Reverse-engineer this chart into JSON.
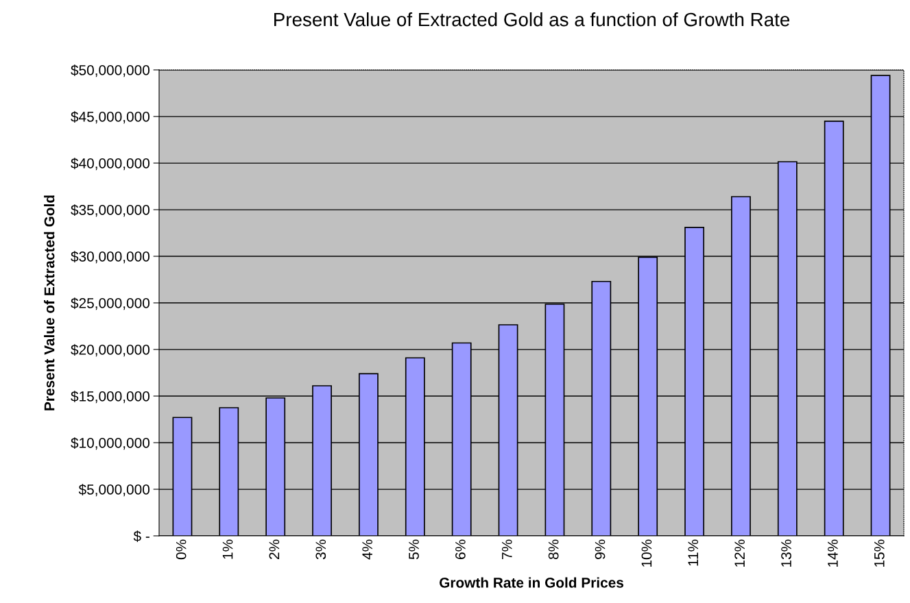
{
  "chart_data": {
    "type": "bar",
    "title": "Present Value of Extracted Gold as a function of Growth Rate",
    "xlabel": "Growth Rate in Gold Prices",
    "ylabel": "Present Value of Extracted Gold",
    "categories": [
      "0%",
      "1%",
      "2%",
      "3%",
      "4%",
      "5%",
      "6%",
      "7%",
      "8%",
      "9%",
      "10%",
      "11%",
      "12%",
      "13%",
      "14%",
      "15%"
    ],
    "values": [
      12700000,
      13750000,
      14800000,
      16100000,
      17400000,
      19100000,
      20700000,
      22650000,
      24850000,
      27300000,
      29900000,
      33100000,
      36400000,
      40150000,
      44500000,
      49400000
    ],
    "color": "#9999ff",
    "ylim": [
      0,
      50000000
    ],
    "yticks": [
      {
        "value": 0,
        "label": "$ -"
      },
      {
        "value": 5000000,
        "label": "$5,000,000"
      },
      {
        "value": 10000000,
        "label": "$10,000,000"
      },
      {
        "value": 15000000,
        "label": "$15,000,000"
      },
      {
        "value": 20000000,
        "label": "$20,000,000"
      },
      {
        "value": 25000000,
        "label": "$25,000,000"
      },
      {
        "value": 30000000,
        "label": "$30,000,000"
      },
      {
        "value": 35000000,
        "label": "$35,000,000"
      },
      {
        "value": 40000000,
        "label": "$40,000,000"
      },
      {
        "value": 45000000,
        "label": "$45,000,000"
      },
      {
        "value": 50000000,
        "label": "$50,000,000"
      }
    ],
    "grid": "y",
    "legend": false
  }
}
